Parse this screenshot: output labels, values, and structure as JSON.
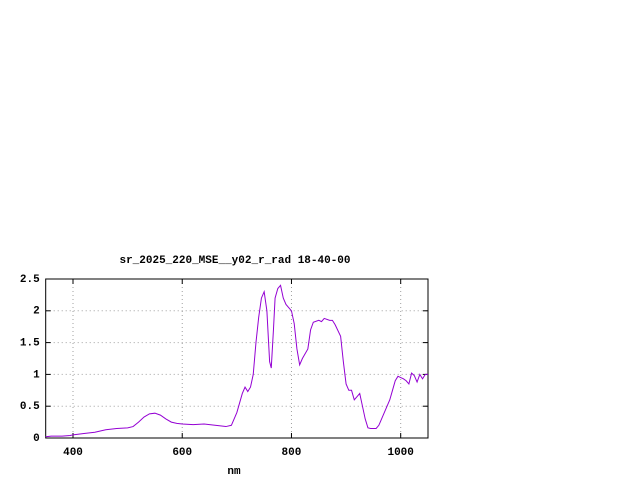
{
  "chart_data": {
    "type": "line",
    "title": "sr_2025_220_MSE__y02_r_rad 18-40-00",
    "x_label": "nm",
    "x": [
      350,
      360,
      380,
      395,
      400,
      420,
      440,
      460,
      480,
      500,
      510,
      520,
      530,
      540,
      550,
      560,
      570,
      580,
      590,
      600,
      620,
      640,
      660,
      680,
      690,
      700,
      710,
      715,
      720,
      725,
      730,
      735,
      740,
      745,
      750,
      755,
      760,
      763,
      767,
      770,
      775,
      780,
      785,
      790,
      800,
      805,
      810,
      815,
      820,
      830,
      835,
      840,
      850,
      855,
      860,
      870,
      875,
      880,
      890,
      895,
      900,
      905,
      910,
      915,
      920,
      925,
      930,
      935,
      940,
      945,
      950,
      955,
      960,
      965,
      970,
      975,
      980,
      985,
      990,
      995,
      1000,
      1005,
      1010,
      1015,
      1020,
      1025,
      1030,
      1035,
      1040,
      1045,
      1050
    ],
    "series": [
      {
        "color": "#9400d3",
        "values": [
          0.02,
          0.03,
          0.03,
          0.04,
          0.05,
          0.07,
          0.09,
          0.13,
          0.15,
          0.16,
          0.18,
          0.25,
          0.33,
          0.38,
          0.39,
          0.36,
          0.3,
          0.25,
          0.23,
          0.22,
          0.21,
          0.22,
          0.2,
          0.18,
          0.2,
          0.4,
          0.7,
          0.8,
          0.73,
          0.8,
          1.0,
          1.5,
          1.9,
          2.2,
          2.3,
          2.0,
          1.2,
          1.1,
          1.7,
          2.2,
          2.35,
          2.4,
          2.2,
          2.1,
          2.0,
          1.8,
          1.4,
          1.15,
          1.25,
          1.4,
          1.7,
          1.82,
          1.85,
          1.83,
          1.88,
          1.85,
          1.85,
          1.78,
          1.6,
          1.2,
          0.85,
          0.75,
          0.75,
          0.6,
          0.65,
          0.7,
          0.5,
          0.3,
          0.16,
          0.15,
          0.15,
          0.15,
          0.2,
          0.3,
          0.4,
          0.5,
          0.6,
          0.75,
          0.9,
          0.97,
          0.95,
          0.93,
          0.9,
          0.85,
          1.02,
          0.98,
          0.88,
          1.0,
          0.93,
          1.0,
          1.0
        ]
      }
    ],
    "xlim": [
      350,
      1050
    ],
    "xticks": [
      400,
      600,
      800,
      1000
    ],
    "ylim": [
      0,
      2.5
    ],
    "yticks": [
      0,
      0.5,
      1,
      1.5,
      2,
      2.5
    ],
    "grid": true
  }
}
